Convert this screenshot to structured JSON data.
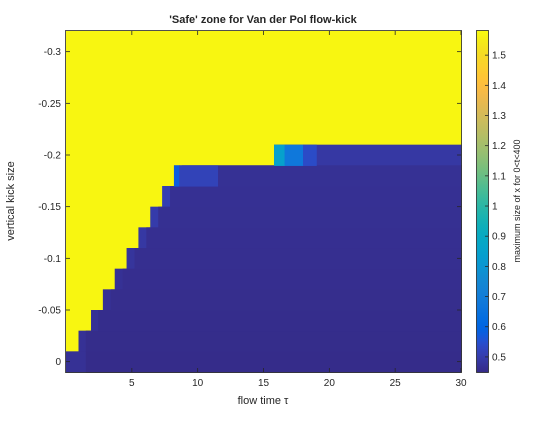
{
  "chart_data": {
    "type": "heatmap",
    "title": "'Safe' zone for Van der Pol flow-kick",
    "xlabel": "flow time τ",
    "ylabel": "vertical kick size",
    "colorbar_label": "maximum size of x for 0<t<400",
    "xlim": [
      0,
      30
    ],
    "ylim": [
      0.01,
      -0.32
    ],
    "y_direction": "reversed (kick size decreasing upward)",
    "x_ticks": [
      {
        "value": 5,
        "label": "5"
      },
      {
        "value": 10,
        "label": "10"
      },
      {
        "value": 15,
        "label": "15"
      },
      {
        "value": 20,
        "label": "20"
      },
      {
        "value": 25,
        "label": "25"
      },
      {
        "value": 30,
        "label": "30"
      }
    ],
    "y_ticks": [
      {
        "value": 0,
        "label": "0"
      },
      {
        "value": -0.05,
        "label": "-0.05"
      },
      {
        "value": -0.1,
        "label": "-0.1"
      },
      {
        "value": -0.15,
        "label": "-0.15"
      },
      {
        "value": -0.2,
        "label": "-0.2"
      },
      {
        "value": -0.25,
        "label": "-0.25"
      },
      {
        "value": -0.3,
        "label": "-0.3"
      }
    ],
    "color_range": [
      0.45,
      1.58
    ],
    "colorbar_ticks": [
      {
        "value": 0.5,
        "label": "0.5"
      },
      {
        "value": 0.6,
        "label": "0.6"
      },
      {
        "value": 0.7,
        "label": "0.7"
      },
      {
        "value": 0.8,
        "label": "0.8"
      },
      {
        "value": 0.9,
        "label": "0.9"
      },
      {
        "value": 1.0,
        "label": "1"
      },
      {
        "value": 1.1,
        "label": "1.1"
      },
      {
        "value": 1.2,
        "label": "1.2"
      },
      {
        "value": 1.3,
        "label": "1.3"
      },
      {
        "value": 1.4,
        "label": "1.4"
      },
      {
        "value": 1.5,
        "label": "1.5"
      }
    ],
    "colormap": "parula",
    "background_value": 1.57,
    "regions": [
      {
        "x": [
          0.0,
          0.95
        ],
        "y": [
          0.01,
          -0.01
        ],
        "value": 0.47
      },
      {
        "x": [
          0.95,
          1.9
        ],
        "y": [
          -0.01,
          -0.03
        ],
        "value": 0.47
      },
      {
        "x": [
          1.9,
          2.8
        ],
        "y": [
          -0.03,
          -0.05
        ],
        "value": 0.47
      },
      {
        "x": [
          2.8,
          3.7
        ],
        "y": [
          -0.05,
          -0.07
        ],
        "value": 0.47
      },
      {
        "x": [
          3.7,
          4.6
        ],
        "y": [
          -0.07,
          -0.09
        ],
        "value": 0.47
      },
      {
        "x": [
          4.6,
          5.5
        ],
        "y": [
          -0.09,
          -0.11
        ],
        "value": 0.48
      },
      {
        "x": [
          5.5,
          6.4
        ],
        "y": [
          -0.11,
          -0.13
        ],
        "value": 0.49
      },
      {
        "x": [
          6.4,
          7.3
        ],
        "y": [
          -0.13,
          -0.15
        ],
        "value": 0.5
      },
      {
        "x": [
          7.3,
          8.2
        ],
        "y": [
          -0.15,
          -0.17
        ],
        "value": 0.51
      },
      {
        "x": [
          8.2,
          30
        ],
        "y": [
          -0.17,
          -0.19
        ],
        "value": 0.49
      },
      {
        "x": [
          15.8,
          30
        ],
        "y": [
          -0.19,
          -0.21
        ],
        "value": 0.49
      }
    ],
    "highlights": [
      {
        "x": [
          8.2,
          8.6
        ],
        "y": [
          -0.17,
          -0.19
        ],
        "value": 0.58
      },
      {
        "x": [
          8.6,
          11.5
        ],
        "y": [
          -0.17,
          -0.19
        ],
        "value": 0.52
      },
      {
        "x": [
          15.8,
          16.6
        ],
        "y": [
          -0.19,
          -0.21
        ],
        "value": 0.85
      },
      {
        "x": [
          16.6,
          18.0
        ],
        "y": [
          -0.19,
          -0.21
        ],
        "value": 0.68
      },
      {
        "x": [
          18.0,
          19.0
        ],
        "y": [
          -0.19,
          -0.21
        ],
        "value": 0.54
      }
    ],
    "floor": {
      "x": [
        0,
        30
      ],
      "y": [
        0.01,
        -0.19
      ],
      "base_value": 0.47,
      "bottom_value": 0.455
    }
  }
}
